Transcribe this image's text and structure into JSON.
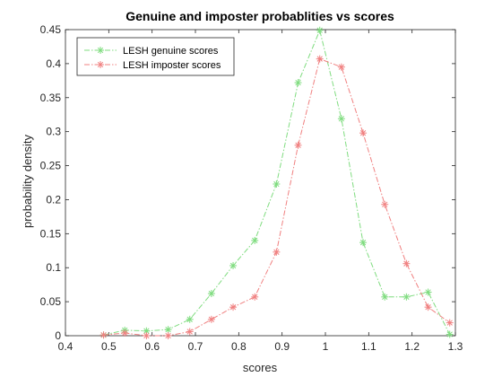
{
  "chart_data": {
    "type": "line",
    "title": "Genuine and imposter probablities vs scores",
    "xlabel": "scores",
    "ylabel": "probability density",
    "xlim": [
      0.4,
      1.3
    ],
    "ylim": [
      0,
      0.45
    ],
    "xticks": [
      "0.4",
      "0.5",
      "0.6",
      "0.7",
      "0.8",
      "0.9",
      "1",
      "1.1",
      "1.2",
      "1.3"
    ],
    "yticks": [
      "0",
      "0.05",
      "0.1",
      "0.15",
      "0.2",
      "0.25",
      "0.3",
      "0.35",
      "0.4",
      "0.45"
    ],
    "grid": false,
    "legend_position": "top-left",
    "series": [
      {
        "name": "LESH genuine scores",
        "color": "#7fdc7f",
        "marker": "asterisk",
        "line_style": "dash-dot",
        "x": [
          0.488,
          0.537,
          0.587,
          0.637,
          0.687,
          0.737,
          0.787,
          0.837,
          0.887,
          0.937,
          0.987,
          1.037,
          1.087,
          1.137,
          1.187,
          1.237,
          1.287
        ],
        "y": [
          0.001,
          0.008,
          0.007,
          0.009,
          0.024,
          0.062,
          0.103,
          0.14,
          0.223,
          0.372,
          0.449,
          0.319,
          0.137,
          0.057,
          0.057,
          0.064,
          0.002
        ]
      },
      {
        "name": "LESH imposter scores",
        "color": "#f08080",
        "marker": "asterisk",
        "line_style": "dash-dot",
        "x": [
          0.488,
          0.537,
          0.587,
          0.637,
          0.687,
          0.737,
          0.787,
          0.837,
          0.887,
          0.937,
          0.987,
          1.037,
          1.087,
          1.137,
          1.187,
          1.237,
          1.287
        ],
        "y": [
          0.001,
          0.004,
          0.0,
          0.0,
          0.006,
          0.024,
          0.042,
          0.057,
          0.123,
          0.28,
          0.407,
          0.395,
          0.298,
          0.193,
          0.106,
          0.042,
          0.019
        ]
      }
    ]
  }
}
